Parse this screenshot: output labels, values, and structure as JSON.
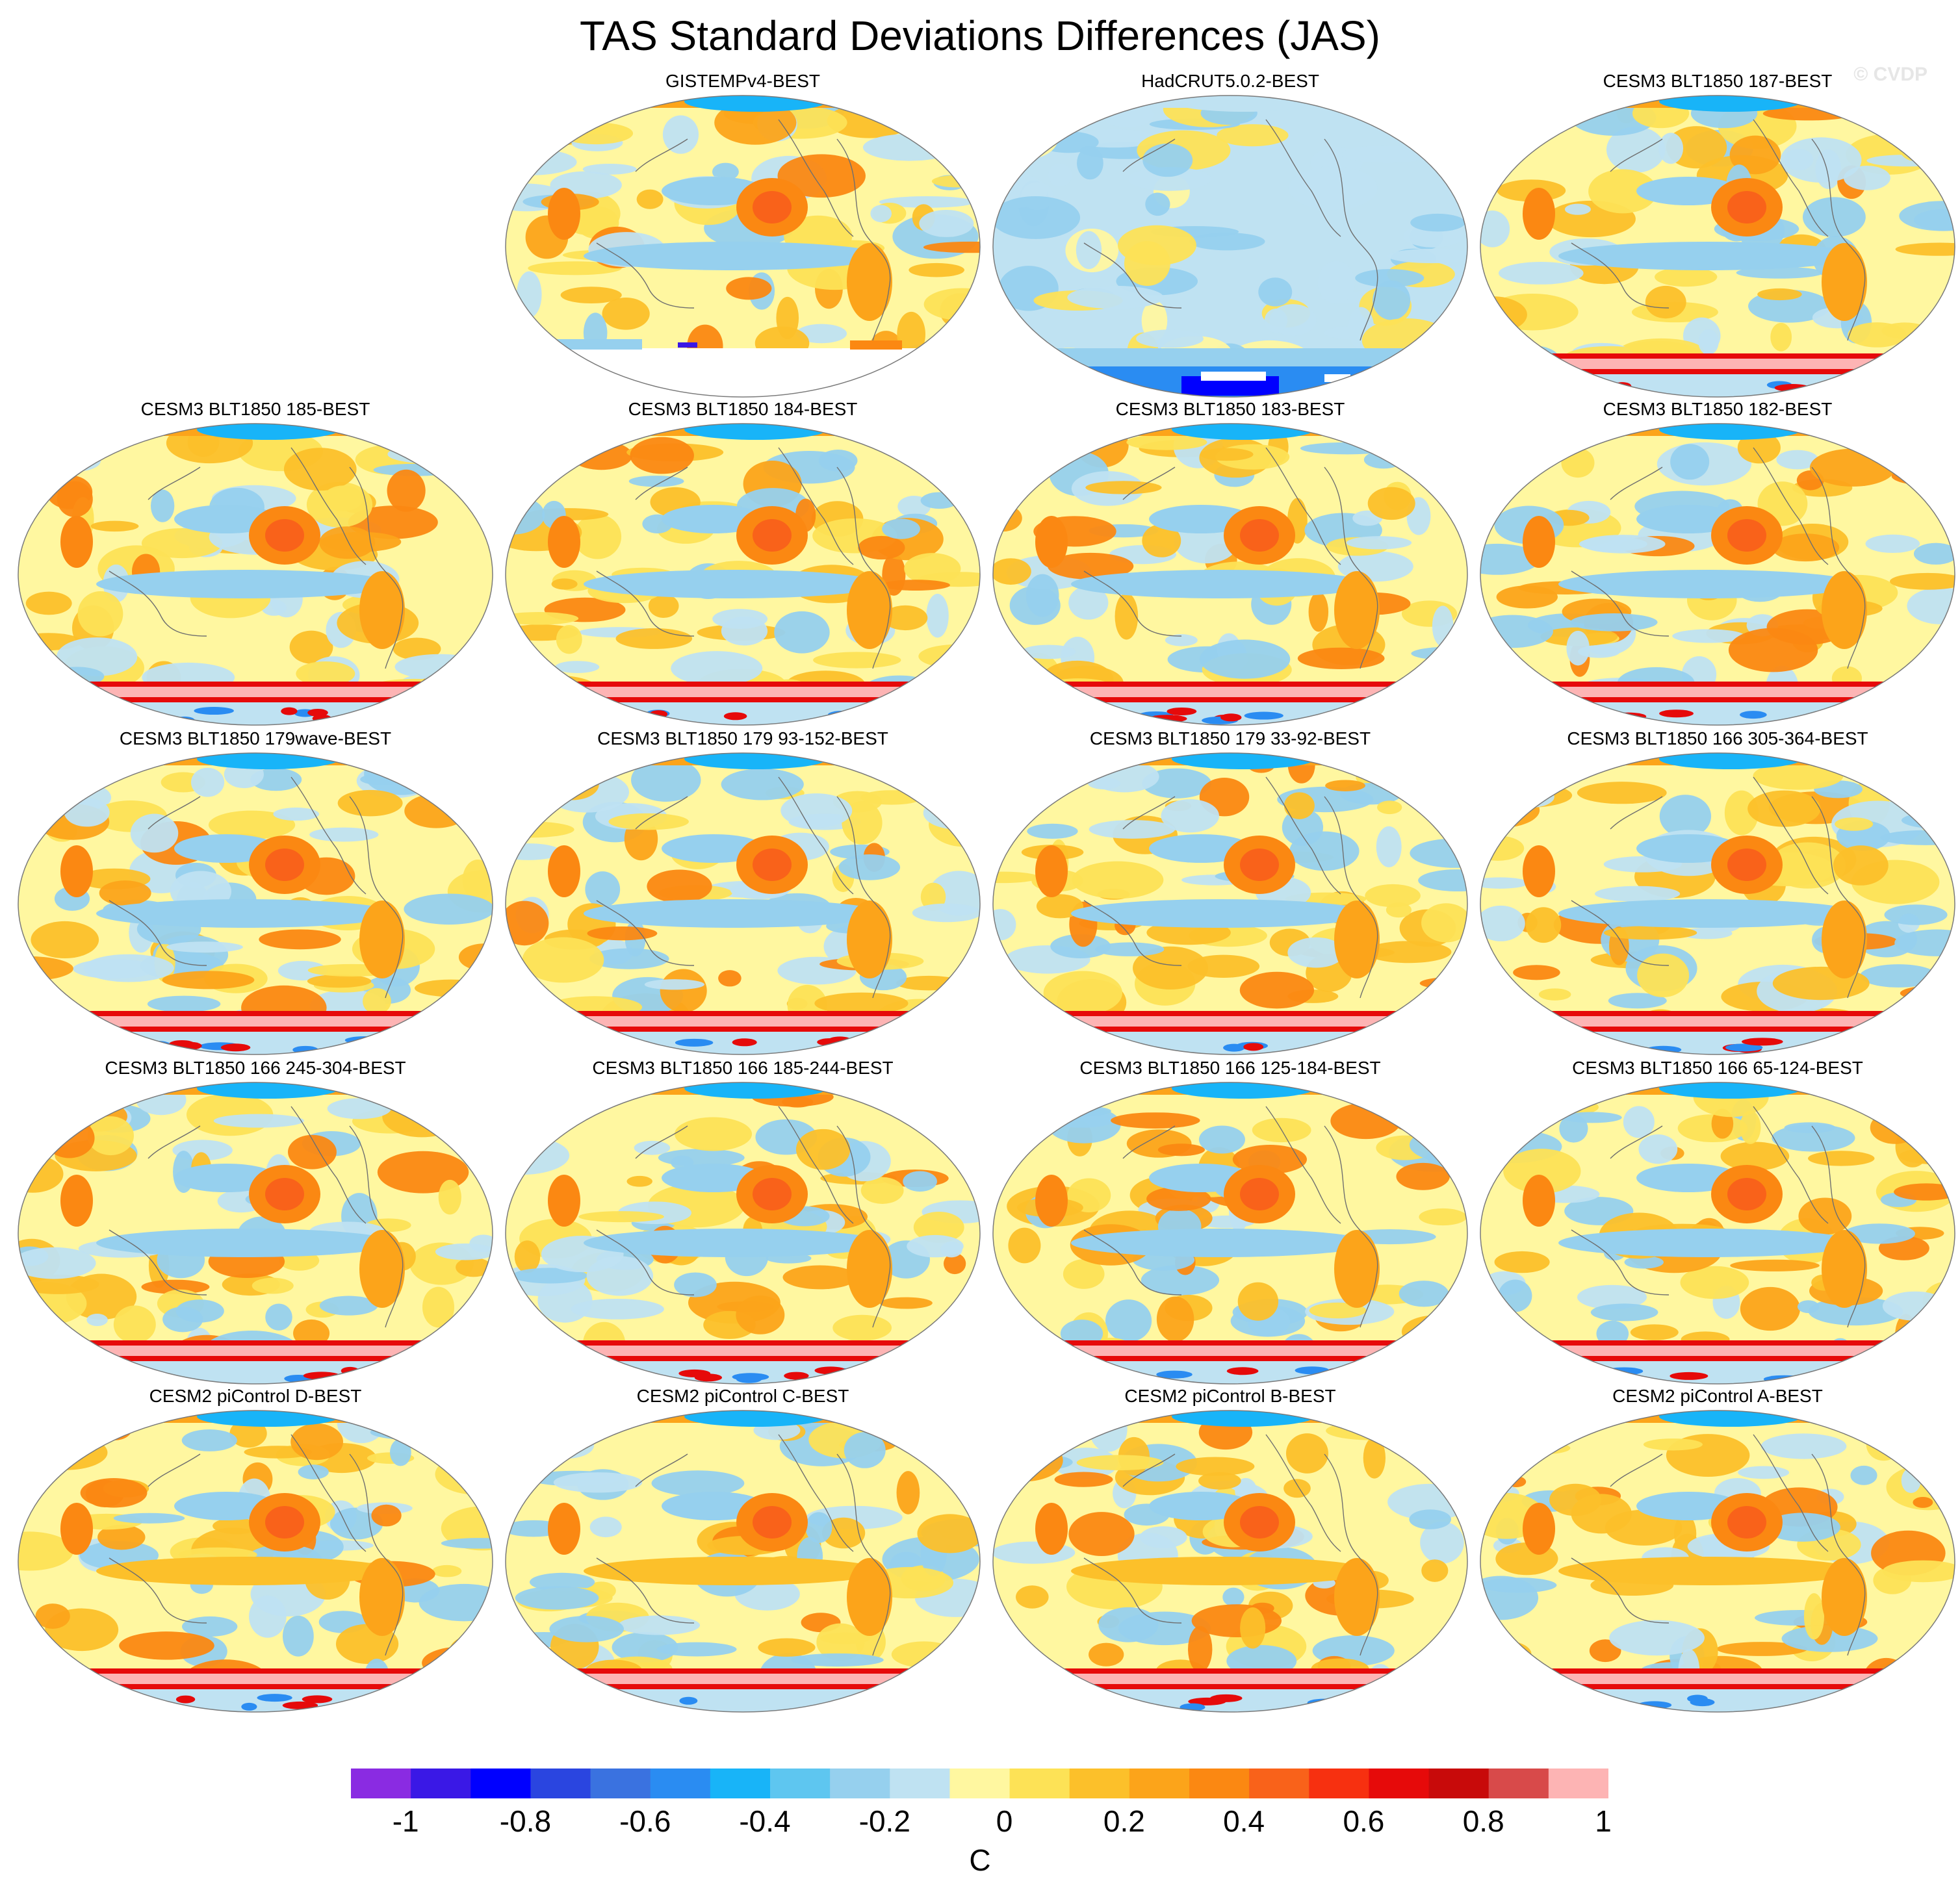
{
  "title": "TAS Standard Deviations Differences (JAS)",
  "watermark": "© CVDP",
  "chart_data": {
    "type": "heatmap",
    "projection": "Robinson (Pacific-centered)",
    "variable": "TAS",
    "season": "JAS",
    "panels": [
      {
        "label": "GISTEMPv4-BEST",
        "row": 0,
        "col": 1,
        "missing_south": true
      },
      {
        "label": "HadCRUT5.0.2-BEST",
        "row": 0,
        "col": 2,
        "mostly_negative": true
      },
      {
        "label": "CESM3 BLT1850 187-BEST",
        "row": 0,
        "col": 3
      },
      {
        "label": "CESM3 BLT1850 185-BEST",
        "row": 1,
        "col": 0
      },
      {
        "label": "CESM3 BLT1850 184-BEST",
        "row": 1,
        "col": 1
      },
      {
        "label": "CESM3 BLT1850 183-BEST",
        "row": 1,
        "col": 2
      },
      {
        "label": "CESM3 BLT1850 182-BEST",
        "row": 1,
        "col": 3
      },
      {
        "label": "CESM3 BLT1850 179wave-BEST",
        "row": 2,
        "col": 0
      },
      {
        "label": "CESM3 BLT1850 179 93-152-BEST",
        "row": 2,
        "col": 1
      },
      {
        "label": "CESM3 BLT1850 179 33-92-BEST",
        "row": 2,
        "col": 2
      },
      {
        "label": "CESM3 BLT1850 166 305-364-BEST",
        "row": 2,
        "col": 3
      },
      {
        "label": "CESM3 BLT1850 166 245-304-BEST",
        "row": 3,
        "col": 0
      },
      {
        "label": "CESM3 BLT1850 166 185-244-BEST",
        "row": 3,
        "col": 1
      },
      {
        "label": "CESM3 BLT1850 166 125-184-BEST",
        "row": 3,
        "col": 2
      },
      {
        "label": "CESM3 BLT1850 166 65-124-BEST",
        "row": 3,
        "col": 3
      },
      {
        "label": "CESM2 piControl D-BEST",
        "row": 4,
        "col": 0,
        "picontrol": true
      },
      {
        "label": "CESM2 piControl C-BEST",
        "row": 4,
        "col": 1,
        "picontrol": true
      },
      {
        "label": "CESM2 piControl B-BEST",
        "row": 4,
        "col": 2,
        "picontrol": true
      },
      {
        "label": "CESM2 piControl A-BEST",
        "row": 4,
        "col": 3,
        "picontrol": true
      }
    ],
    "colorbar": {
      "levels": [
        -1,
        -0.9,
        -0.8,
        -0.7,
        -0.6,
        -0.5,
        -0.4,
        -0.3,
        -0.2,
        -0.1,
        0,
        0.1,
        0.2,
        0.3,
        0.4,
        0.5,
        0.6,
        0.7,
        0.8,
        0.9,
        1
      ],
      "colors": [
        "#8a2be2",
        "#3a18e6",
        "#0000ff",
        "#2a45e0",
        "#3a72e0",
        "#2a8cf2",
        "#18b4f8",
        "#5ec6f0",
        "#96d0ee",
        "#bfe2f2",
        "#fff7a0",
        "#fde256",
        "#fcc02a",
        "#fca41a",
        "#fb8812",
        "#f9621a",
        "#f73010",
        "#e60a0a",
        "#c80a0a",
        "#d84a4a",
        "#fdb4b4"
      ],
      "tick_labels": [
        "-1",
        "-0.8",
        "-0.6",
        "-0.4",
        "-0.2",
        "0",
        "0.2",
        "0.4",
        "0.6",
        "0.8",
        "1"
      ],
      "units": "C"
    }
  }
}
